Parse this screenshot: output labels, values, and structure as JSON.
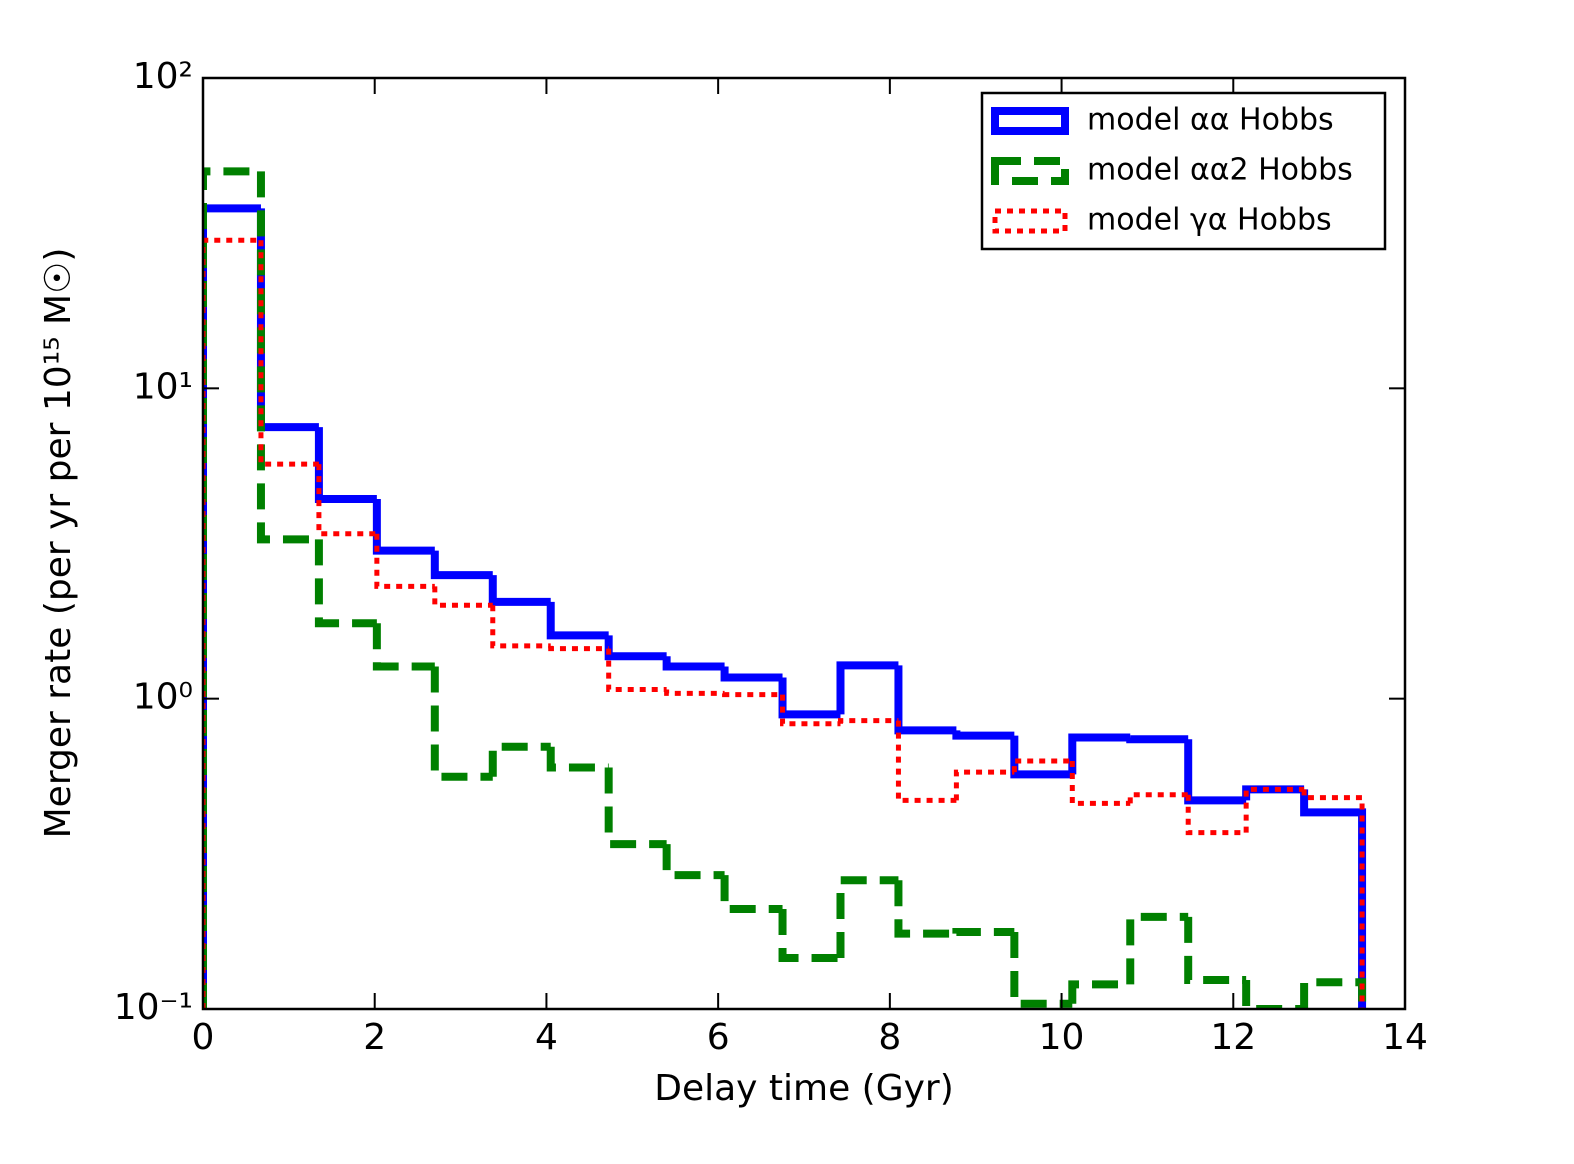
{
  "chart_data": {
    "type": "histogram",
    "xlabel": "Delay time (Gyr)",
    "ylabel": "Merger rate (per yr per 10¹⁵ M☉)",
    "bins": [
      0,
      0.675,
      1.35,
      2.025,
      2.7,
      3.375,
      4.05,
      4.725,
      5.4,
      6.075,
      6.75,
      7.425,
      8.1,
      8.775,
      9.45,
      10.125,
      10.8,
      11.475,
      12.15,
      12.825,
      13.5
    ],
    "series": [
      {
        "name": "model αα Hobbs",
        "color": "#0000ff",
        "style": "solid",
        "values": [
          38,
          7.5,
          4.4,
          3.0,
          2.5,
          2.05,
          1.6,
          1.37,
          1.27,
          1.17,
          0.89,
          1.28,
          0.79,
          0.76,
          0.57,
          0.75,
          0.74,
          0.47,
          0.51,
          0.43
        ]
      },
      {
        "name": "model αα2 Hobbs",
        "color": "#008000",
        "style": "dashed",
        "values": [
          50,
          3.26,
          1.75,
          1.27,
          0.56,
          0.7,
          0.6,
          0.34,
          0.27,
          0.21,
          0.146,
          0.26,
          0.175,
          0.177,
          0.104,
          0.12,
          0.198,
          0.124,
          0.1,
          0.122
        ]
      },
      {
        "name": "model γα Hobbs",
        "color": "#ff0000",
        "style": "dotted",
        "values": [
          30,
          5.7,
          3.4,
          2.3,
          2.0,
          1.48,
          1.45,
          1.07,
          1.04,
          1.03,
          0.83,
          0.85,
          0.47,
          0.58,
          0.63,
          0.46,
          0.49,
          0.37,
          0.51,
          0.48
        ]
      }
    ],
    "xlim": [
      0,
      14
    ],
    "xticks": [
      0,
      2,
      4,
      6,
      8,
      10,
      12,
      14
    ],
    "ylim": [
      0.1,
      100
    ],
    "log_y": true,
    "yticks": [
      {
        "value": 0.1,
        "label": "10⁻¹"
      },
      {
        "value": 1,
        "label": "10⁰"
      },
      {
        "value": 10,
        "label": "10¹"
      },
      {
        "value": 100,
        "label": "10²"
      }
    ],
    "legend": "upper right"
  }
}
